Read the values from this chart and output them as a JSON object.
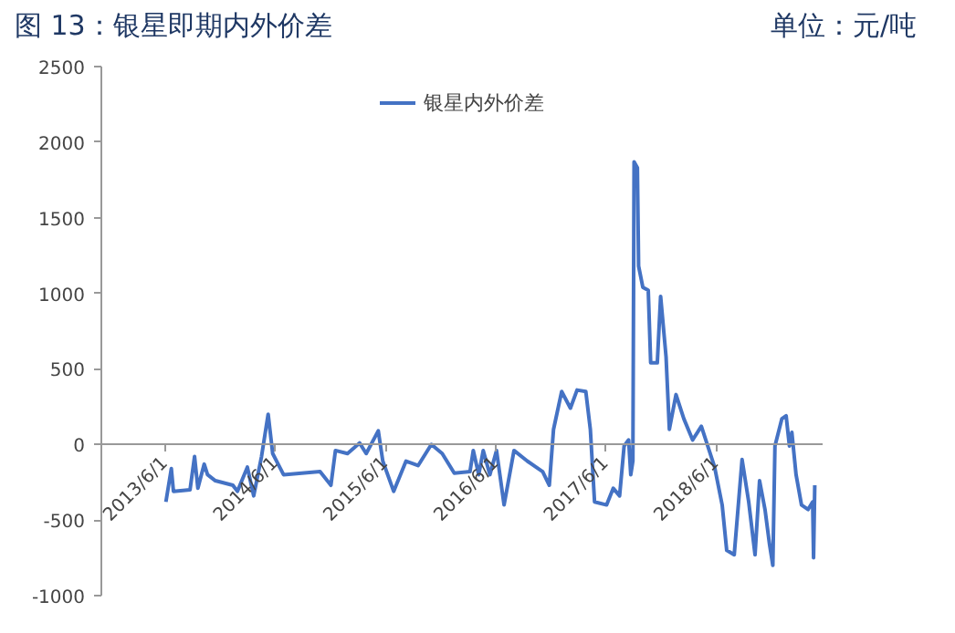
{
  "chart_data": {
    "type": "line",
    "title": "图 13：银星即期内外价差",
    "annotations": [
      "单位：元/吨"
    ],
    "x": [
      "2013-06-03",
      "2013-06-21",
      "2013-06-28",
      "2013-08-22",
      "2013-09-06",
      "2013-09-17",
      "2013-10-08",
      "2013-10-19",
      "2013-11-14",
      "2014-01-11",
      "2014-01-26",
      "2014-02-28",
      "2014-03-21",
      "2014-04-16",
      "2014-05-08",
      "2014-05-23",
      "2014-06-28",
      "2014-10-27",
      "2014-12-02",
      "2014-12-17",
      "2015-01-26",
      "2015-03-07",
      "2015-03-29",
      "2015-05-08",
      "2015-05-23",
      "2015-06-28",
      "2015-08-08",
      "2015-09-17",
      "2015-10-31",
      "2015-12-06",
      "2016-01-15",
      "2016-03-07",
      "2016-03-18",
      "2016-04-05",
      "2016-04-20",
      "2016-05-12",
      "2016-06-03",
      "2016-06-28",
      "2016-07-31",
      "2016-09-13",
      "2016-11-03",
      "2016-11-25",
      "2016-12-09",
      "2017-01-05",
      "2017-02-03",
      "2017-02-25",
      "2017-03-26",
      "2017-04-10",
      "2017-04-24",
      "2017-06-03",
      "2017-06-25",
      "2017-07-16",
      "2017-07-31",
      "2017-08-15",
      "2017-08-22",
      "2017-08-29",
      "2017-09-02",
      "2017-09-13",
      "2017-09-17",
      "2017-10-01",
      "2017-10-19",
      "2017-10-27",
      "2017-11-18",
      "2017-11-29",
      "2017-12-17",
      "2017-12-28",
      "2018-01-19",
      "2018-02-14",
      "2018-03-15",
      "2018-04-13",
      "2018-05-27",
      "2018-06-21",
      "2018-07-06",
      "2018-07-31",
      "2018-08-26",
      "2018-09-17",
      "2018-10-08",
      "2018-10-23",
      "2018-11-10",
      "2018-11-25",
      "2018-12-06",
      "2018-12-13",
      "2019-01-05",
      "2019-01-19",
      "2019-01-30",
      "2019-02-07",
      "2019-02-21",
      "2019-03-11",
      "2019-04-02",
      "2019-04-17",
      "2019-04-20",
      "2019-04-24"
    ],
    "series": [
      {
        "name": "银星内外价差",
        "color": "#4472c4",
        "values": [
          -380,
          -160,
          -310,
          -300,
          -80,
          -290,
          -130,
          -200,
          -240,
          -270,
          -310,
          -150,
          -340,
          -80,
          200,
          -60,
          -200,
          -180,
          -270,
          -40,
          -60,
          10,
          -60,
          90,
          -110,
          -310,
          -110,
          -140,
          0,
          -60,
          -190,
          -180,
          -40,
          -200,
          -40,
          -200,
          -40,
          -400,
          -40,
          -110,
          -180,
          -270,
          100,
          350,
          240,
          360,
          350,
          100,
          -380,
          -400,
          -290,
          -340,
          -10,
          30,
          -200,
          -110,
          1870,
          1830,
          1180,
          1040,
          1020,
          540,
          540,
          980,
          580,
          100,
          330,
          170,
          30,
          120,
          -150,
          -400,
          -700,
          -730,
          -100,
          -380,
          -730,
          -240,
          -430,
          -660,
          -800,
          -10,
          170,
          190,
          -10,
          80,
          -200,
          -400,
          -430,
          -380,
          -750,
          -270
        ]
      }
    ],
    "xlim": [
      "2012-11-01",
      "2019-05-20"
    ],
    "xticks": [
      {
        "value": "2013-06-01",
        "label": "2013/6/1"
      },
      {
        "value": "2014-06-01",
        "label": "2014/6/1"
      },
      {
        "value": "2015-06-01",
        "label": "2015/6/1"
      },
      {
        "value": "2016-06-01",
        "label": "2016/6/1"
      },
      {
        "value": "2017-06-01",
        "label": "2017/6/1"
      },
      {
        "value": "2018-06-01",
        "label": "2018/6/1"
      }
    ],
    "ylim": [
      -1000,
      2500
    ],
    "yticks": [
      -1000,
      -500,
      0,
      500,
      1000,
      1500,
      2000,
      2500
    ],
    "legend": "top",
    "grid": false,
    "line_style": "solid",
    "marker": "none"
  }
}
